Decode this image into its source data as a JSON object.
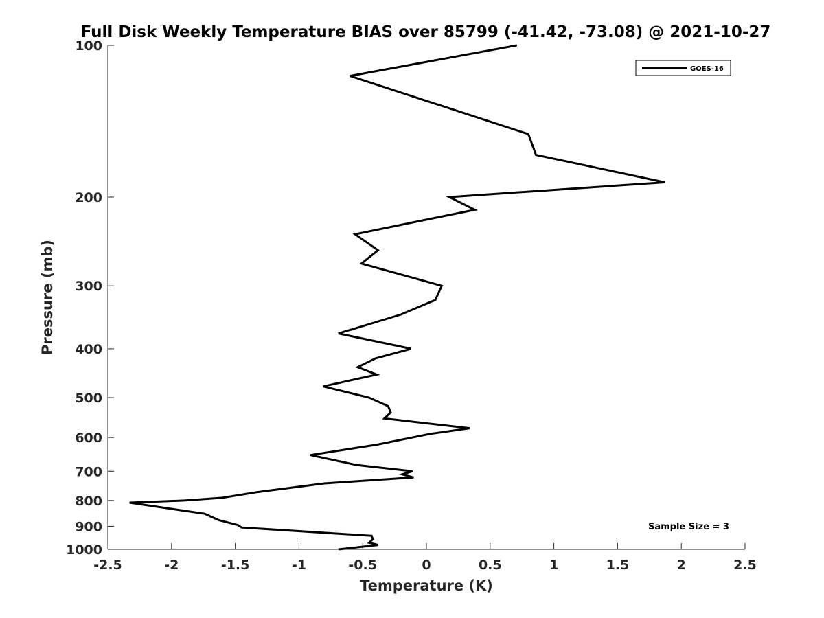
{
  "chart_data": {
    "type": "line",
    "title": "Full Disk Weekly Temperature BIAS over 85799 (-41.42, -73.08) @ 2021-10-27",
    "xlabel": "Temperature (K)",
    "ylabel": "Pressure (mb)",
    "xlim": [
      -2.5,
      2.5
    ],
    "ylim": [
      100,
      1000
    ],
    "yscale": "log",
    "yreversed": true,
    "grid": false,
    "legend_position": "top-right",
    "xticks": [
      -2.5,
      -2,
      -1.5,
      -1,
      -0.5,
      0,
      0.5,
      1,
      1.5,
      2,
      2.5
    ],
    "xtick_labels": [
      "-2.5",
      "-2",
      "-1.5",
      "-1",
      "-0.5",
      "0",
      "0.5",
      "1",
      "1.5",
      "2",
      "2.5"
    ],
    "yticks": [
      100,
      200,
      300,
      400,
      500,
      600,
      700,
      800,
      900,
      1000
    ],
    "ytick_labels": [
      "100",
      "200",
      "300",
      "400",
      "500",
      "600",
      "700",
      "800",
      "900",
      "1000"
    ],
    "series": [
      {
        "name": "GOES-16",
        "color": "#000000",
        "points": [
          [
            0.71,
            100
          ],
          [
            -0.6,
            115
          ],
          [
            0.8,
            150
          ],
          [
            0.86,
            165
          ],
          [
            1.87,
            187
          ],
          [
            0.18,
            200
          ],
          [
            0.38,
            212
          ],
          [
            -0.56,
            237
          ],
          [
            -0.38,
            255
          ],
          [
            -0.51,
            271
          ],
          [
            0.12,
            300
          ],
          [
            0.07,
            320
          ],
          [
            -0.2,
            342
          ],
          [
            -0.69,
            373
          ],
          [
            -0.12,
            400
          ],
          [
            -0.4,
            418
          ],
          [
            -0.54,
            435
          ],
          [
            -0.39,
            450
          ],
          [
            -0.81,
            475
          ],
          [
            -0.45,
            500
          ],
          [
            -0.3,
            520
          ],
          [
            -0.28,
            535
          ],
          [
            -0.33,
            550
          ],
          [
            0.34,
            575
          ],
          [
            0.03,
            590
          ],
          [
            -0.39,
            620
          ],
          [
            -0.91,
            650
          ],
          [
            -0.55,
            680
          ],
          [
            -0.11,
            700
          ],
          [
            -0.19,
            710
          ],
          [
            -0.1,
            720
          ],
          [
            -0.8,
            740
          ],
          [
            -1.33,
            770
          ],
          [
            -1.6,
            790
          ],
          [
            -1.9,
            800
          ],
          [
            -2.33,
            808
          ],
          [
            -1.74,
            850
          ],
          [
            -1.63,
            875
          ],
          [
            -1.48,
            895
          ],
          [
            -1.45,
            905
          ],
          [
            -0.43,
            940
          ],
          [
            -0.42,
            955
          ],
          [
            -0.45,
            970
          ],
          [
            -0.38,
            980
          ],
          [
            -0.69,
            1000
          ]
        ]
      }
    ],
    "annotations": [
      {
        "text": "Sample Size = 3",
        "position": "bottom-right"
      }
    ]
  }
}
